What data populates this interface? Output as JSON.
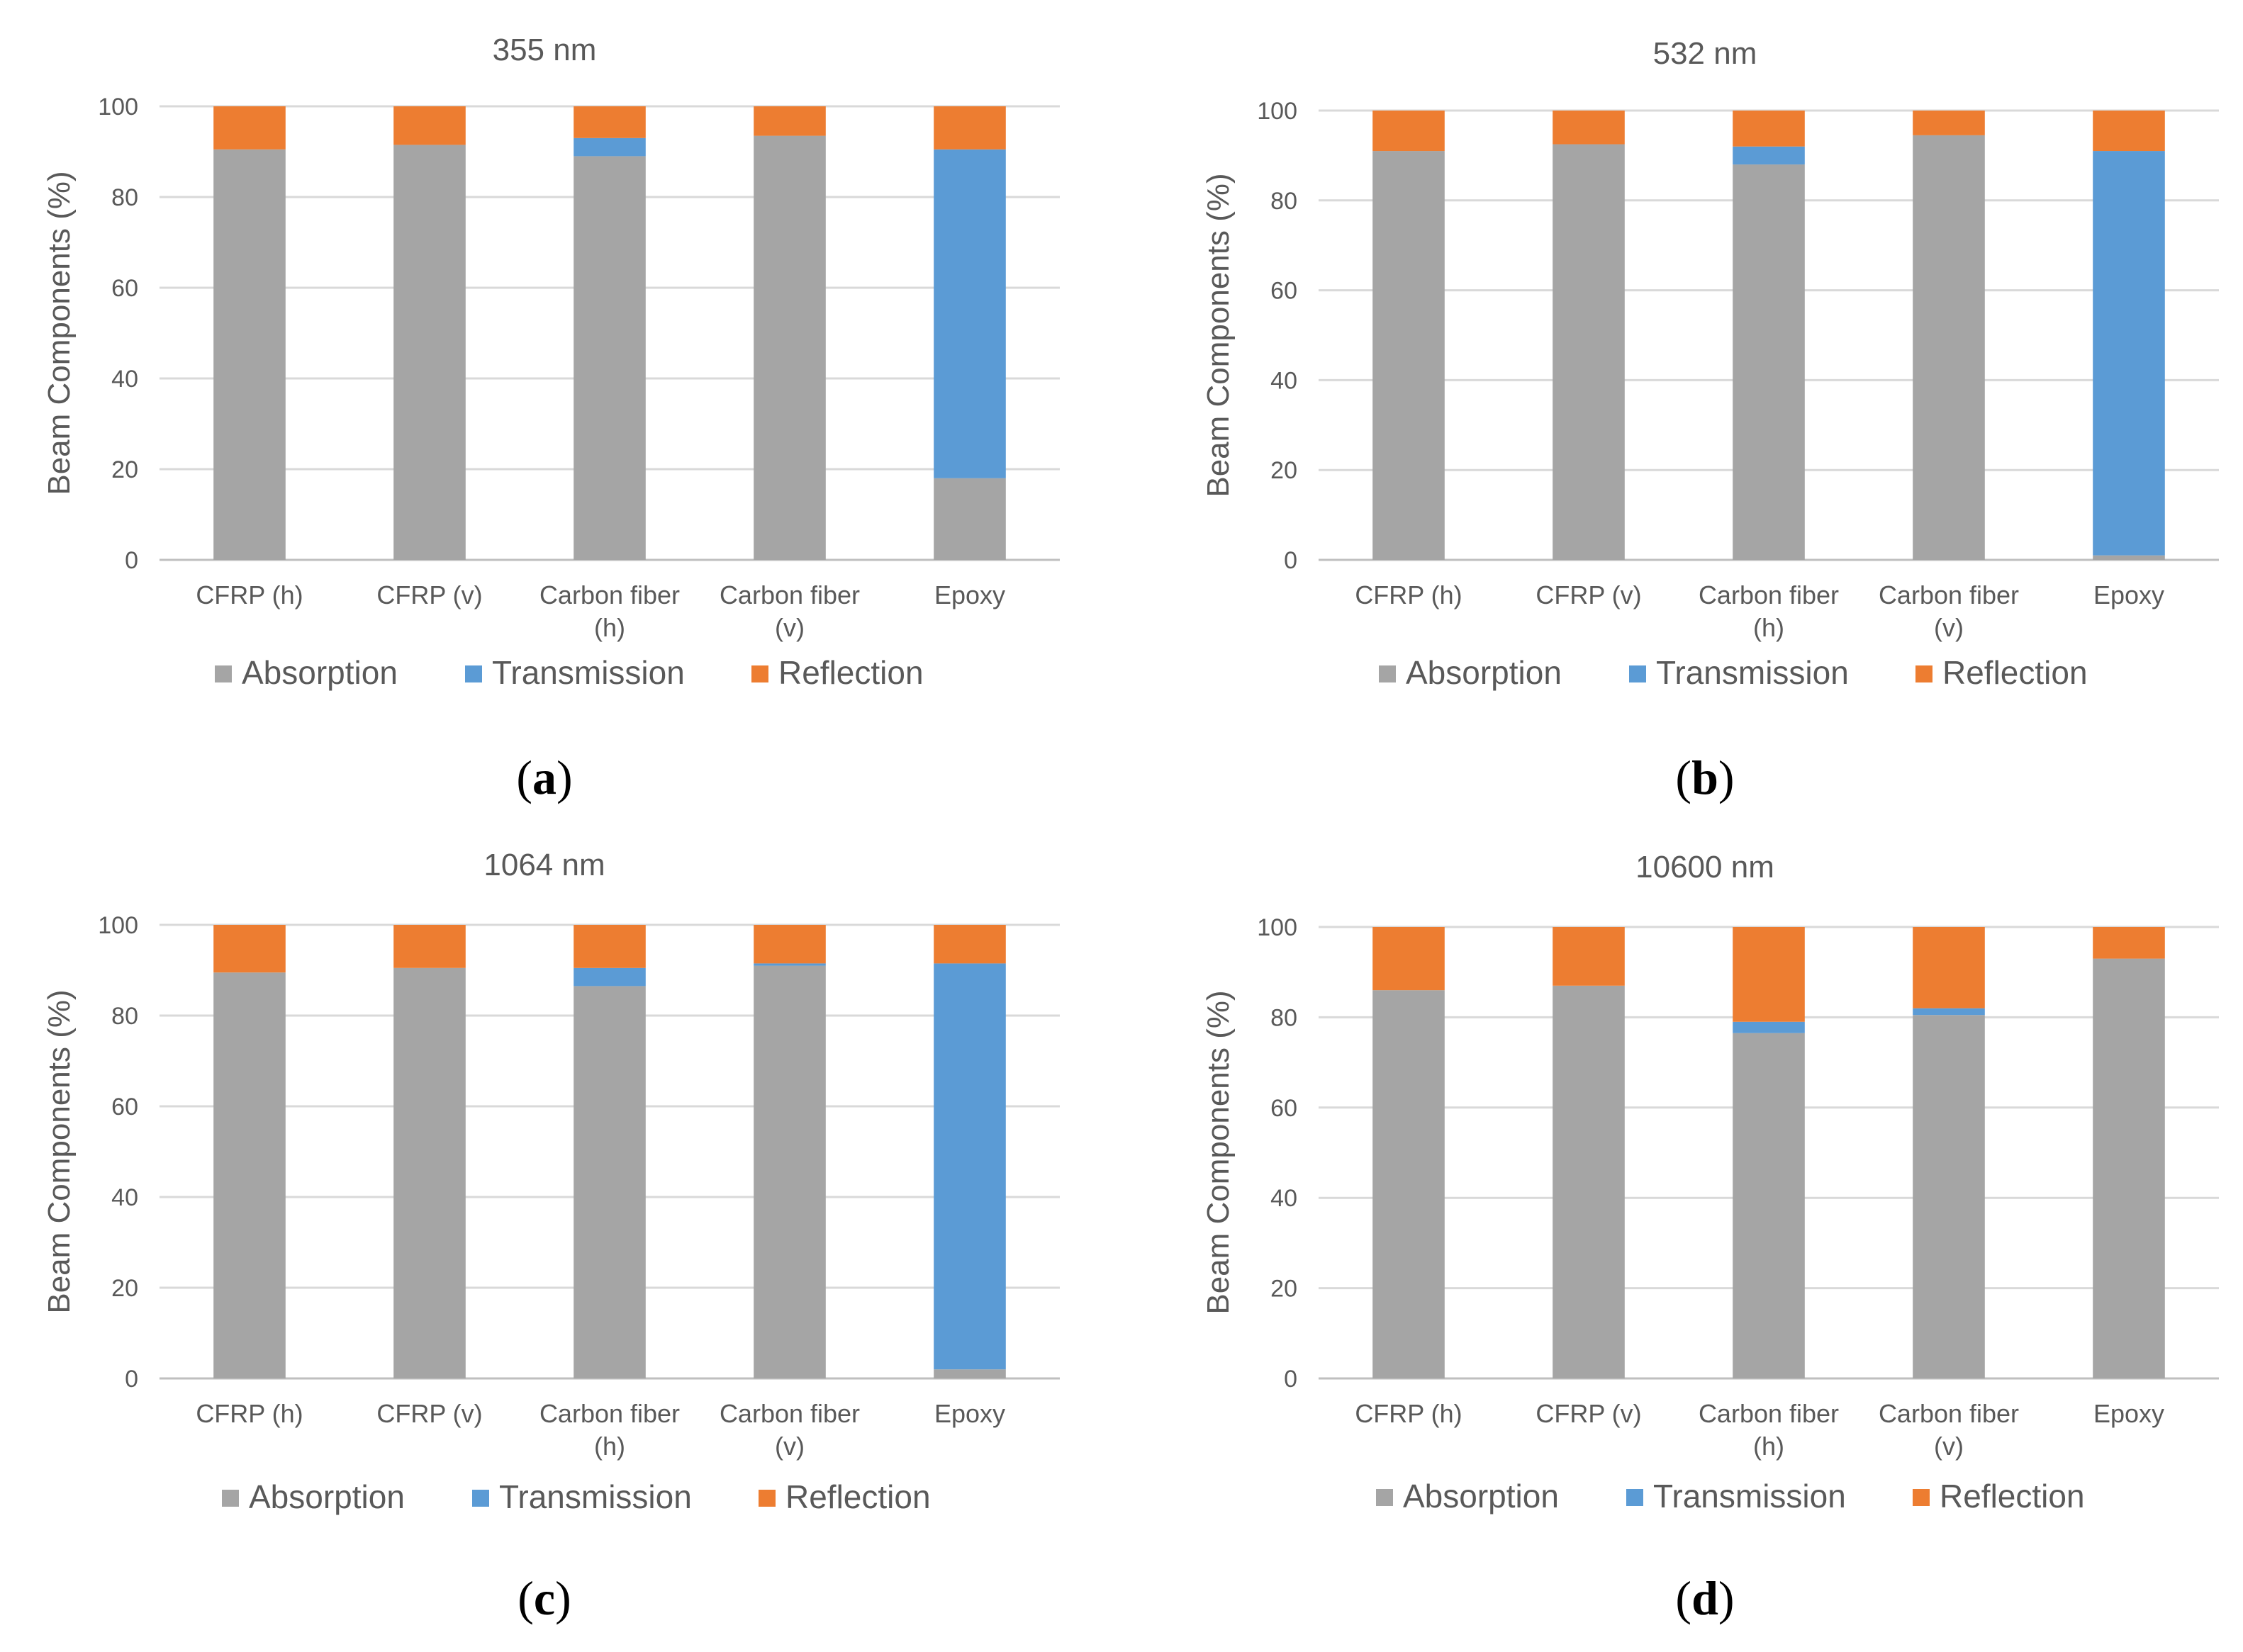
{
  "colors": {
    "absorption": "#a5a5a5",
    "transmission": "#5b9bd5",
    "reflection": "#ed7d31"
  },
  "chart_data": [
    {
      "type": "bar",
      "stacked": true,
      "panel_label": "a",
      "title": "355 nm",
      "xlabel": "",
      "ylabel": "Beam Components (%)",
      "ylim": [
        0,
        100
      ],
      "yticks": [
        0,
        20,
        40,
        60,
        80,
        100
      ],
      "grid": true,
      "legend_position": "bottom",
      "categories": [
        "CFRP (h)",
        "CFRP (v)",
        "Carbon fiber (h)",
        "Carbon fiber (v)",
        "Epoxy"
      ],
      "category_lines": [
        [
          "CFRP (h)"
        ],
        [
          "CFRP (v)"
        ],
        [
          "Carbon fiber",
          "(h)"
        ],
        [
          "Carbon fiber",
          "(v)"
        ],
        [
          "Epoxy"
        ]
      ],
      "series": [
        {
          "name": "Absorption",
          "color": "#a5a5a5",
          "values": [
            90.5,
            91.5,
            89,
            93.5,
            18
          ]
        },
        {
          "name": "Transmission",
          "color": "#5b9bd5",
          "values": [
            0,
            0,
            4,
            0,
            72.5
          ]
        },
        {
          "name": "Reflection",
          "color": "#ed7d31",
          "values": [
            9.5,
            8.5,
            7,
            6.5,
            9.5
          ]
        }
      ]
    },
    {
      "type": "bar",
      "stacked": true,
      "panel_label": "b",
      "title": "532 nm",
      "xlabel": "",
      "ylabel": "Beam Components (%)",
      "ylim": [
        0,
        100
      ],
      "yticks": [
        0,
        20,
        40,
        60,
        80,
        100
      ],
      "grid": true,
      "legend_position": "bottom",
      "categories": [
        "CFRP (h)",
        "CFRP (v)",
        "Carbon fiber (h)",
        "Carbon fiber (v)",
        "Epoxy"
      ],
      "category_lines": [
        [
          "CFRP (h)"
        ],
        [
          "CFRP (v)"
        ],
        [
          "Carbon fiber",
          "(h)"
        ],
        [
          "Carbon fiber",
          "(v)"
        ],
        [
          "Epoxy"
        ]
      ],
      "series": [
        {
          "name": "Absorption",
          "color": "#a5a5a5",
          "values": [
            91,
            92.5,
            88,
            94.5,
            1
          ]
        },
        {
          "name": "Transmission",
          "color": "#5b9bd5",
          "values": [
            0,
            0,
            4,
            0,
            90
          ]
        },
        {
          "name": "Reflection",
          "color": "#ed7d31",
          "values": [
            9,
            7.5,
            8,
            5.5,
            9
          ]
        }
      ]
    },
    {
      "type": "bar",
      "stacked": true,
      "panel_label": "c",
      "title": "1064 nm",
      "xlabel": "",
      "ylabel": "Beam Components (%)",
      "ylim": [
        0,
        100
      ],
      "yticks": [
        0,
        20,
        40,
        60,
        80,
        100
      ],
      "grid": true,
      "legend_position": "bottom",
      "categories": [
        "CFRP (h)",
        "CFRP (v)",
        "Carbon fiber (h)",
        "Carbon fiber (v)",
        "Epoxy"
      ],
      "category_lines": [
        [
          "CFRP (h)"
        ],
        [
          "CFRP (v)"
        ],
        [
          "Carbon fiber",
          "(h)"
        ],
        [
          "Carbon fiber",
          "(v)"
        ],
        [
          "Epoxy"
        ]
      ],
      "series": [
        {
          "name": "Absorption",
          "color": "#a5a5a5",
          "values": [
            89.5,
            90.5,
            86.5,
            91,
            2
          ]
        },
        {
          "name": "Transmission",
          "color": "#5b9bd5",
          "values": [
            0,
            0,
            4,
            0.5,
            89.5
          ]
        },
        {
          "name": "Reflection",
          "color": "#ed7d31",
          "values": [
            10.5,
            9.5,
            9.5,
            8.5,
            8.5
          ]
        }
      ]
    },
    {
      "type": "bar",
      "stacked": true,
      "panel_label": "d",
      "title": "10600 nm",
      "xlabel": "",
      "ylabel": "Beam Components (%)",
      "ylim": [
        0,
        100
      ],
      "yticks": [
        0,
        20,
        40,
        60,
        80,
        100
      ],
      "grid": true,
      "legend_position": "bottom",
      "categories": [
        "CFRP (h)",
        "CFRP (v)",
        "Carbon fiber (h)",
        "Carbon fiber (v)",
        "Epoxy"
      ],
      "category_lines": [
        [
          "CFRP (h)"
        ],
        [
          "CFRP (v)"
        ],
        [
          "Carbon fiber",
          "(h)"
        ],
        [
          "Carbon fiber",
          "(v)"
        ],
        [
          "Epoxy"
        ]
      ],
      "series": [
        {
          "name": "Absorption",
          "color": "#a5a5a5",
          "values": [
            86,
            87,
            76.5,
            80.5,
            93
          ]
        },
        {
          "name": "Transmission",
          "color": "#5b9bd5",
          "values": [
            0,
            0,
            2.5,
            1.5,
            0
          ]
        },
        {
          "name": "Reflection",
          "color": "#ed7d31",
          "values": [
            14,
            13,
            21,
            18,
            7
          ]
        }
      ]
    }
  ]
}
